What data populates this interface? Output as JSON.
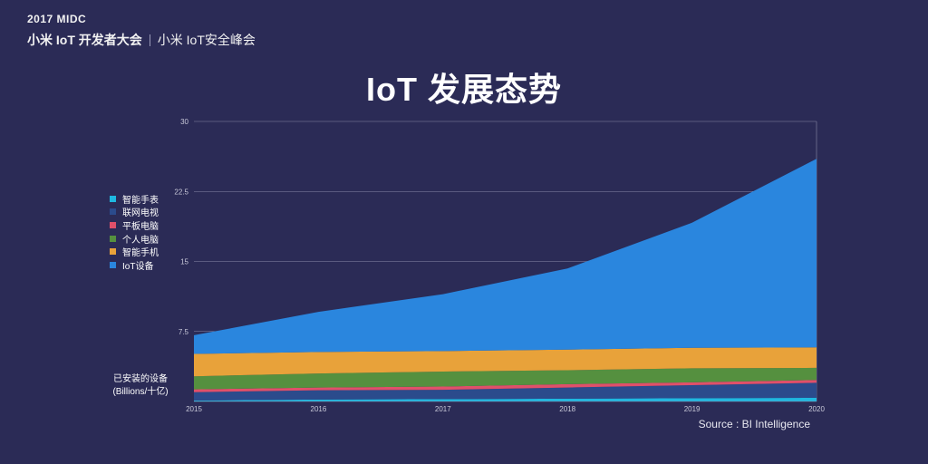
{
  "header": {
    "event_year": "2017 MIDC",
    "event_name": "小米 IoT 开发者大会",
    "session_name": "小米 IoT安全峰会"
  },
  "title": "IoT 发展态势",
  "source": "Source : BI Intelligence",
  "chart_data": {
    "type": "area",
    "stacked": true,
    "title": "IoT 发展态势",
    "ylabel": "已安装的设备 (Billions/十亿)",
    "ylabel_lines": [
      "已安装的设备",
      "(Billions/十亿)"
    ],
    "xlabel": "",
    "x": [
      "2015",
      "2016",
      "2017",
      "2018",
      "2019",
      "2020"
    ],
    "y_ticks": [
      "7.5",
      "15",
      "22.5",
      "30"
    ],
    "ylim": [
      0,
      30
    ],
    "grid": true,
    "legend_position": "left",
    "series": [
      {
        "name": "智能手表",
        "color": "#1fb8e0",
        "values": [
          0.1,
          0.2,
          0.25,
          0.3,
          0.35,
          0.4
        ]
      },
      {
        "name": "联网电视",
        "color": "#2b4b8c",
        "values": [
          0.9,
          1.0,
          1.0,
          1.2,
          1.4,
          1.6
        ]
      },
      {
        "name": "平板电脑",
        "color": "#e0506a",
        "values": [
          0.3,
          0.3,
          0.35,
          0.35,
          0.3,
          0.3
        ]
      },
      {
        "name": "个人电脑",
        "color": "#55903f",
        "values": [
          1.4,
          1.5,
          1.6,
          1.5,
          1.5,
          1.3
        ]
      },
      {
        "name": "智能手机",
        "color": "#e8a23a",
        "values": [
          2.4,
          2.3,
          2.2,
          2.2,
          2.2,
          2.2
        ]
      },
      {
        "name": "IoT设备",
        "color": "#2a86de",
        "values": [
          2.0,
          4.3,
          6.1,
          8.7,
          13.4,
          20.2
        ]
      }
    ]
  }
}
